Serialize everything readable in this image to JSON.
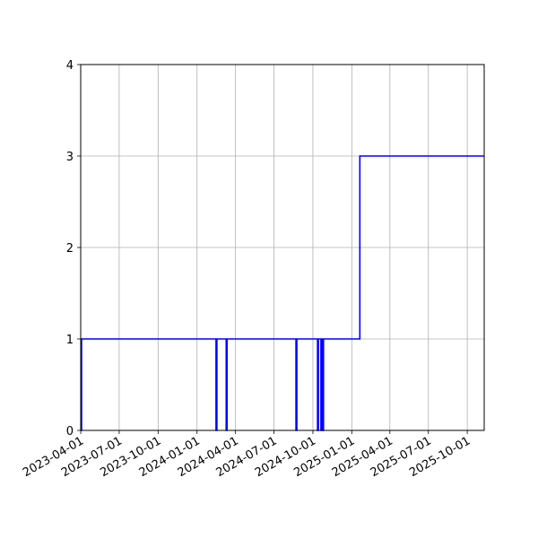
{
  "chart_data": {
    "type": "line",
    "step": true,
    "title": "",
    "xlabel": "",
    "ylabel": "",
    "grid": true,
    "xlim": [
      "2023-04-01",
      "2025-11-10"
    ],
    "ylim": [
      0,
      4
    ],
    "x_ticks": [
      "2023-04-01",
      "2023-07-01",
      "2023-10-01",
      "2024-01-01",
      "2024-04-01",
      "2024-07-01",
      "2024-10-01",
      "2025-01-01",
      "2025-04-01",
      "2025-07-01",
      "2025-10-01"
    ],
    "y_ticks": [
      0,
      1,
      2,
      3,
      4
    ],
    "series": [
      {
        "color": "#0000ff",
        "x": [
          "2023-04-01",
          "2023-04-03",
          "2024-02-15",
          "2024-02-17",
          "2024-03-10",
          "2024-03-12",
          "2024-08-22",
          "2024-08-24",
          "2024-10-12",
          "2024-10-14",
          "2024-10-20",
          "2024-10-22",
          "2024-10-24",
          "2024-10-26",
          "2025-01-20",
          "2025-11-10"
        ],
        "values": [
          0,
          1,
          0,
          1,
          0,
          1,
          0,
          1,
          0,
          1,
          0,
          1,
          0,
          1,
          3,
          3
        ]
      }
    ]
  }
}
